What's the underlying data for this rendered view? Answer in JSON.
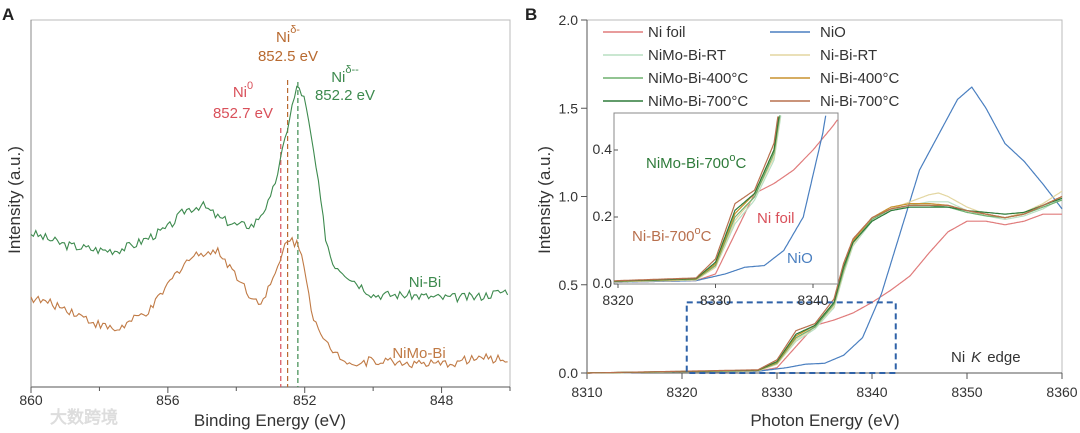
{
  "watermark": "大数跨境",
  "chart_data": [
    {
      "panel": "A",
      "type": "line",
      "xlabel": "Binding Energy (eV)",
      "ylabel": "Intensity (a.u.)",
      "xlim": [
        860,
        846
      ],
      "ylim": [
        0,
        1
      ],
      "xticks": [
        "860",
        "856",
        "852",
        "848"
      ],
      "xtick_values": [
        860,
        856,
        852,
        848
      ],
      "series": [
        {
          "name": "Ni-Bi",
          "color": "#3d8a4e",
          "x": [
            860,
            859,
            858,
            857.5,
            857,
            856,
            855.5,
            855,
            854.5,
            854,
            853.5,
            853,
            852.7,
            852.4,
            852.2,
            852,
            851.7,
            851.4,
            851.2,
            850.5,
            850,
            849,
            848,
            847,
            846
          ],
          "y": [
            0.42,
            0.387,
            0.373,
            0.373,
            0.387,
            0.433,
            0.482,
            0.496,
            0.46,
            0.441,
            0.441,
            0.51,
            0.619,
            0.755,
            0.823,
            0.782,
            0.619,
            0.414,
            0.34,
            0.286,
            0.251,
            0.251,
            0.243,
            0.245,
            0.264
          ]
        },
        {
          "name": "NiMo-Bi",
          "color": "#c07a45",
          "x": [
            860,
            859,
            858,
            857.5,
            857,
            856.5,
            856,
            855.5,
            855,
            854.5,
            854,
            853.5,
            853.2,
            852.8,
            852.5,
            852.2,
            852,
            851.8,
            851.5,
            851,
            850.5,
            850,
            849,
            848,
            847,
            846
          ],
          "y": [
            0.243,
            0.215,
            0.169,
            0.155,
            0.183,
            0.21,
            0.278,
            0.341,
            0.368,
            0.368,
            0.305,
            0.237,
            0.237,
            0.319,
            0.409,
            0.387,
            0.332,
            0.21,
            0.128,
            0.087,
            0.06,
            0.074,
            0.065,
            0.06,
            0.079,
            0.074
          ]
        }
      ],
      "reference_lines": [
        {
          "label": "Ni",
          "sup": "0",
          "value_label": "852.7 eV",
          "x": 852.7,
          "color": "#d9505a"
        },
        {
          "label": "Ni",
          "sup": "δ-",
          "value_label": "852.5 eV",
          "x": 852.5,
          "color": "#b86a30"
        },
        {
          "label": "Ni",
          "sup": "δ--",
          "value_label": "852.2 eV",
          "x": 852.2,
          "color": "#3d8a4e"
        }
      ]
    },
    {
      "panel": "B",
      "type": "line",
      "xlabel": "Photon Energy (eV)",
      "ylabel": "Intensity (a.u.)",
      "xlim": [
        8310,
        8360
      ],
      "ylim": [
        0,
        2.0
      ],
      "xticks": [
        "8310",
        "8320",
        "8330",
        "8340",
        "8350",
        "8360"
      ],
      "xtick_values": [
        8310,
        8320,
        8330,
        8340,
        8350,
        8360
      ],
      "yticks": [
        "0.0",
        "0.5",
        "1.0",
        "1.5",
        "2.0"
      ],
      "ytick_values": [
        0,
        0.5,
        1.0,
        1.5,
        2.0
      ],
      "annotation": "Ni K edge",
      "annotation_parts": [
        "Ni",
        "K",
        "edge"
      ],
      "zoom_region": {
        "x": [
          8320.5,
          8342.5
        ],
        "y": [
          0,
          0.4
        ]
      },
      "legend_position": "top-left",
      "series": [
        {
          "name": "Ni foil",
          "color": "#e07b7b",
          "x": [
            8310,
            8328,
            8330,
            8332,
            8334,
            8336,
            8338,
            8340,
            8342,
            8344,
            8346,
            8348,
            8350,
            8352,
            8354,
            8356,
            8358,
            8360
          ],
          "y": [
            0,
            0.01,
            0.03,
            0.15,
            0.27,
            0.3,
            0.34,
            0.4,
            0.47,
            0.55,
            0.68,
            0.8,
            0.86,
            0.86,
            0.84,
            0.86,
            0.9,
            0.9
          ]
        },
        {
          "name": "NiO",
          "color": "#4a7fc0",
          "x": [
            8310,
            8328,
            8331,
            8333,
            8335,
            8337,
            8339,
            8341,
            8343,
            8345,
            8347,
            8349,
            8350.5,
            8352,
            8354,
            8356,
            8358,
            8360
          ],
          "y": [
            0,
            0.01,
            0.03,
            0.05,
            0.055,
            0.1,
            0.2,
            0.45,
            0.8,
            1.15,
            1.35,
            1.55,
            1.62,
            1.5,
            1.3,
            1.2,
            1.07,
            0.93
          ]
        },
        {
          "name": "NiMo-Bi-RT",
          "color": "#b9dfc2",
          "x": [
            8310,
            8328,
            8330,
            8332,
            8334,
            8336,
            8337,
            8338,
            8340,
            8342,
            8344,
            8346,
            8348,
            8350,
            8352,
            8354,
            8356,
            8358,
            8360
          ],
          "y": [
            0,
            0.012,
            0.05,
            0.18,
            0.25,
            0.37,
            0.56,
            0.72,
            0.86,
            0.92,
            0.95,
            0.97,
            0.97,
            0.92,
            0.89,
            0.87,
            0.89,
            0.93,
            0.99
          ]
        },
        {
          "name": "Ni-Bi-RT",
          "color": "#e3d6a0",
          "x": [
            8310,
            8328,
            8330,
            8332,
            8334,
            8336,
            8337,
            8338,
            8340,
            8342,
            8344,
            8346,
            8347,
            8348,
            8350,
            8352,
            8354,
            8356,
            8358,
            8360
          ],
          "y": [
            0,
            0.012,
            0.05,
            0.19,
            0.26,
            0.38,
            0.57,
            0.73,
            0.87,
            0.93,
            0.97,
            1.01,
            1.02,
            1.0,
            0.94,
            0.9,
            0.88,
            0.91,
            0.96,
            1.03
          ]
        },
        {
          "name": "NiMo-Bi-400°C",
          "color": "#6fb06f",
          "x": [
            8310,
            8328,
            8330,
            8332,
            8334,
            8336,
            8337,
            8338,
            8340,
            8342,
            8344,
            8346,
            8348,
            8350,
            8352,
            8354,
            8356,
            8358,
            8360
          ],
          "y": [
            0,
            0.014,
            0.055,
            0.2,
            0.26,
            0.39,
            0.58,
            0.74,
            0.87,
            0.93,
            0.95,
            0.95,
            0.94,
            0.91,
            0.89,
            0.88,
            0.9,
            0.94,
            0.98
          ]
        },
        {
          "name": "Ni-Bi-400°C",
          "color": "#c8922e",
          "x": [
            8310,
            8328,
            8330,
            8332,
            8334,
            8336,
            8337,
            8338,
            8340,
            8342,
            8344,
            8346,
            8348,
            8350,
            8352,
            8354,
            8356,
            8358,
            8360
          ],
          "y": [
            0,
            0.015,
            0.06,
            0.21,
            0.27,
            0.4,
            0.6,
            0.75,
            0.88,
            0.94,
            0.96,
            0.96,
            0.95,
            0.92,
            0.9,
            0.88,
            0.9,
            0.95,
            1.0
          ]
        },
        {
          "name": "NiMo-Bi-700°C",
          "color": "#2e7b3a",
          "x": [
            8310,
            8328,
            8330,
            8332,
            8334,
            8336,
            8337,
            8338,
            8340,
            8342,
            8344,
            8346,
            8348,
            8350,
            8352,
            8354,
            8356,
            8358,
            8360
          ],
          "y": [
            0,
            0.016,
            0.065,
            0.22,
            0.27,
            0.4,
            0.6,
            0.74,
            0.86,
            0.92,
            0.94,
            0.94,
            0.94,
            0.92,
            0.91,
            0.9,
            0.91,
            0.95,
            0.99
          ]
        },
        {
          "name": "Ni-Bi-700°C",
          "color": "#b8704e",
          "x": [
            8310,
            8328,
            8330,
            8332,
            8334,
            8336,
            8337,
            8338,
            8340,
            8342,
            8344,
            8346,
            8348,
            8350,
            8352,
            8354,
            8356,
            8358,
            8360
          ],
          "y": [
            0,
            0.018,
            0.075,
            0.24,
            0.28,
            0.42,
            0.62,
            0.76,
            0.88,
            0.93,
            0.95,
            0.95,
            0.95,
            0.92,
            0.9,
            0.88,
            0.9,
            0.95,
            1.0
          ]
        }
      ],
      "inset": {
        "type": "line",
        "xlim": [
          8320,
          8342.5
        ],
        "ylim": [
          0,
          0.51
        ],
        "xticks": [
          "8320",
          "8330",
          "8340"
        ],
        "xtick_values": [
          8320,
          8330,
          8340
        ],
        "yticks": [
          "0.0",
          "0.2",
          "0.4"
        ],
        "ytick_values": [
          0,
          0.2,
          0.4
        ],
        "series_shown": [
          "Ni foil",
          "NiO",
          "NiMo-Bi-700°C",
          "Ni-Bi-700°C"
        ],
        "labels": [
          {
            "text": "NiMo-Bi-700",
            "sup": "o",
            "unit": "C",
            "color": "#2e7b3a"
          },
          {
            "text": "Ni-Bi-700",
            "sup": "o",
            "unit": "C",
            "color": "#b8704e"
          },
          {
            "text": "Ni foil",
            "color": "#d9505a"
          },
          {
            "text": "NiO",
            "color": "#4a7fc0"
          }
        ]
      }
    }
  ]
}
